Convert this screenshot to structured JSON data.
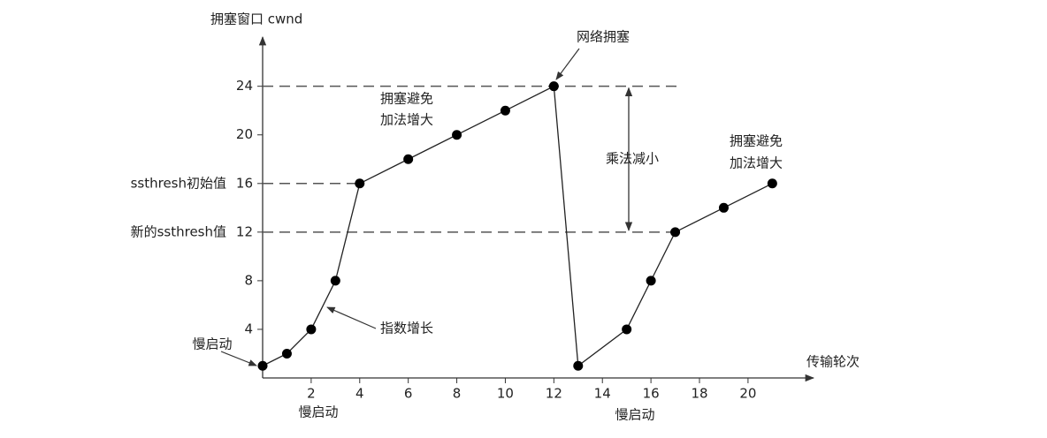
{
  "chart_data": {
    "type": "line",
    "y_label": "拥塞窗口 cwnd",
    "x_label": "传输轮次",
    "x": [
      0,
      1,
      2,
      3,
      4,
      6,
      8,
      10,
      12,
      13,
      15,
      16,
      17,
      19,
      21
    ],
    "values": [
      1,
      2,
      4,
      8,
      16,
      18,
      20,
      22,
      24,
      1,
      4,
      8,
      12,
      14,
      16
    ],
    "color": "#000000",
    "xlim": [
      0,
      22.7
    ],
    "ylim": [
      0,
      27.9
    ],
    "xticks": [
      2,
      4,
      6,
      8,
      10,
      12,
      14,
      16,
      18,
      20
    ],
    "yticks": [
      4,
      8,
      12,
      16,
      20,
      24
    ],
    "ytick_notes": [
      {
        "value": 16,
        "label": "ssthresh初始值"
      },
      {
        "value": 12,
        "label": "新的ssthresh值"
      }
    ],
    "reference_lines": [
      24,
      16,
      12
    ],
    "annotations": [
      "网络拥塞",
      "拥塞避免",
      "加法增大",
      "拥塞避免",
      "加法增大",
      "乘法减小",
      "指数增长",
      "慢启动",
      "慢启动",
      "慢启动"
    ]
  }
}
